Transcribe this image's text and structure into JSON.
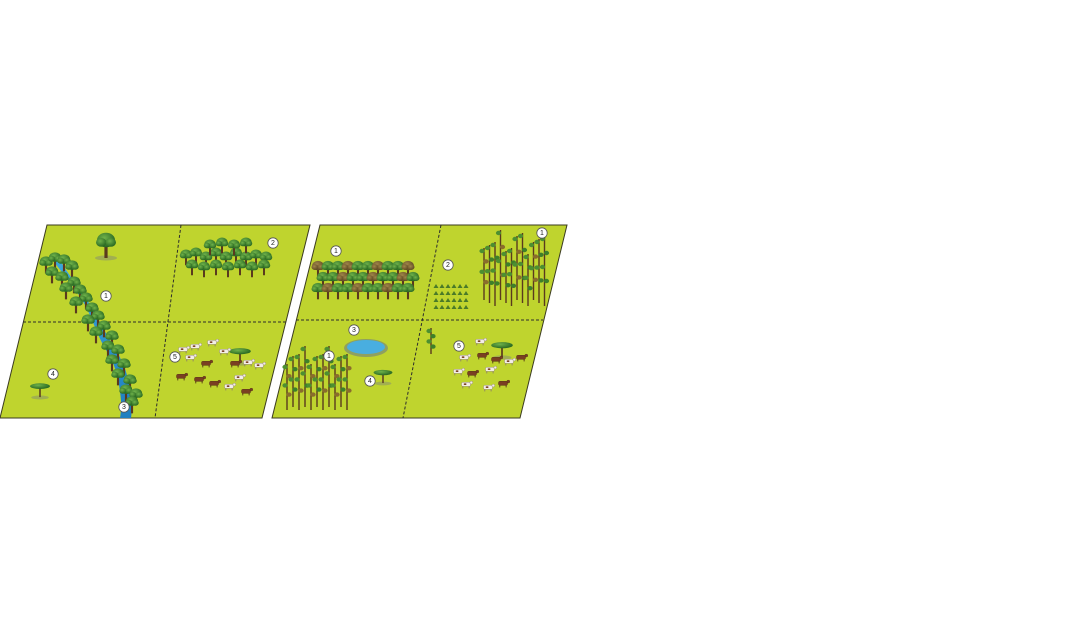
{
  "colors": {
    "field": "#bfd42e",
    "field_outline": "#3a3a20",
    "divider": "#2c2c2c",
    "water": "#2f9fd6",
    "water_dark": "#1b6fa6",
    "tree_canopy": "#2f7d2a",
    "tree_canopy_light": "#4f9b3a",
    "tree_canopy_dry": "#8c6d2a",
    "trunk": "#5a3a1e",
    "shadow": "#9aa55a",
    "cow_brown": "#7a3f22",
    "cow_white": "#f3eee6",
    "pond": "#49aee0"
  },
  "panels": [
    {
      "id": "left",
      "markers": [
        {
          "label": "1",
          "desc": "riparian-forest"
        },
        {
          "label": "2",
          "desc": "forest-patch"
        },
        {
          "label": "3",
          "desc": "river"
        },
        {
          "label": "4",
          "desc": "isolated-tree"
        },
        {
          "label": "5",
          "desc": "pasture-with-cattle"
        }
      ]
    },
    {
      "id": "right",
      "markers": [
        {
          "label": "1",
          "desc": "dense-forest-top-left"
        },
        {
          "label": "2",
          "desc": "plantation"
        },
        {
          "label": "1",
          "desc": "dense-forest-top-right"
        },
        {
          "label": "3",
          "desc": "pond"
        },
        {
          "label": "1",
          "desc": "dense-forest-bottom-left"
        },
        {
          "label": "4",
          "desc": "isolated-tree"
        },
        {
          "label": "5",
          "desc": "pasture-with-cattle"
        }
      ]
    }
  ]
}
